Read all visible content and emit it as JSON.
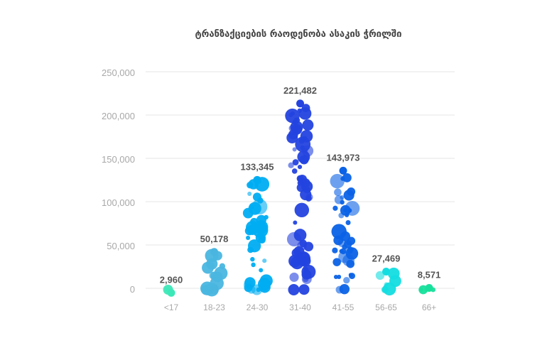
{
  "chart_data": {
    "type": "scatter",
    "subtype": "beeswarm",
    "title": "ტრანზაქციების რაოდენობა ასაკის ჭრილში",
    "xlabel": "",
    "ylabel": "",
    "ylim": [
      0,
      250000
    ],
    "yticks": [
      0,
      50000,
      100000,
      150000,
      200000,
      250000
    ],
    "ytick_labels": [
      "0",
      "50,000",
      "100,000",
      "150,000",
      "200,000",
      "250,000"
    ],
    "grid": true,
    "categories": [
      "<17",
      "18-23",
      "24-30",
      "31-40",
      "41-55",
      "56-65",
      "66+"
    ],
    "values": [
      2960,
      50178,
      133345,
      221482,
      143973,
      27469,
      8571
    ],
    "value_labels": [
      "2,960",
      "50,178",
      "133,345",
      "221,482",
      "143,973",
      "27,469",
      "8,571"
    ],
    "colors": [
      "#3de8b8",
      "#4ab6e0",
      "#00adf2",
      "#2443df",
      "#0b62e6",
      "#14dde0",
      "#18e09c"
    ]
  }
}
